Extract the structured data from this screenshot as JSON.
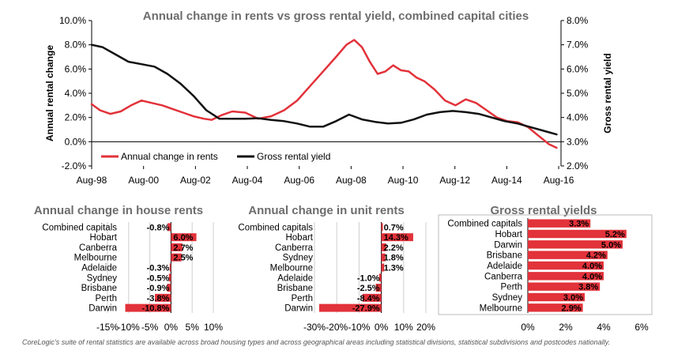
{
  "chart_data": [
    {
      "type": "line",
      "title": "Annual change in rents vs gross rental yield, combined capital cities",
      "xlabel": "",
      "ylabel": "Annual rental change",
      "y2label": "Gross rental yield",
      "x_range": [
        1998.58,
        2016.67
      ],
      "xticks": [
        1998.58,
        2000.58,
        2002.58,
        2004.58,
        2006.58,
        2008.58,
        2010.58,
        2012.58,
        2014.58,
        2016.58
      ],
      "xtick_labels": [
        "Aug-98",
        "Aug-00",
        "Aug-02",
        "Aug-04",
        "Aug-06",
        "Aug-08",
        "Aug-10",
        "Aug-12",
        "Aug-14",
        "Aug-16"
      ],
      "ylim": [
        -2,
        10
      ],
      "yticks": [
        -2,
        0,
        2,
        4,
        6,
        8,
        10
      ],
      "ytick_labels": [
        "-2.0%",
        "0.0%",
        "2.0%",
        "4.0%",
        "6.0%",
        "8.0%",
        "10.0%"
      ],
      "y2lim": [
        2,
        8
      ],
      "y2ticks": [
        2,
        3,
        4,
        5,
        6,
        7,
        8
      ],
      "y2tick_labels": [
        "2.0%",
        "3.0%",
        "4.0%",
        "5.0%",
        "6.0%",
        "7.0%",
        "8.0%"
      ],
      "legend": [
        "Annual change in rents",
        "Gross rental yield"
      ],
      "legend_position": "bottom-center",
      "series": [
        {
          "name": "Annual change in rents",
          "color": "#e2323a",
          "axis": "left",
          "x": [
            1998.58,
            1998.9,
            1999.3,
            1999.7,
            2000.1,
            2000.5,
            2000.9,
            2001.3,
            2001.7,
            2002.1,
            2002.5,
            2002.9,
            2003.2,
            2003.6,
            2004.0,
            2004.5,
            2005.0,
            2005.5,
            2006.0,
            2006.5,
            2007.0,
            2007.5,
            2008.0,
            2008.4,
            2008.7,
            2009.0,
            2009.3,
            2009.6,
            2009.9,
            2010.2,
            2010.5,
            2010.8,
            2011.1,
            2011.4,
            2011.8,
            2012.2,
            2012.6,
            2013.0,
            2013.4,
            2013.8,
            2014.2,
            2014.6,
            2015.0,
            2015.4,
            2015.8,
            2016.2,
            2016.5
          ],
          "y": [
            3.1,
            2.6,
            2.3,
            2.5,
            3.0,
            3.4,
            3.2,
            3.0,
            2.7,
            2.4,
            2.1,
            1.9,
            1.8,
            2.2,
            2.5,
            2.4,
            1.9,
            2.1,
            2.6,
            3.4,
            4.6,
            5.8,
            7.0,
            8.0,
            8.4,
            7.8,
            6.6,
            5.6,
            5.8,
            6.3,
            5.9,
            5.8,
            5.3,
            5.0,
            4.3,
            3.4,
            3.0,
            3.5,
            3.2,
            2.6,
            2.0,
            1.7,
            1.6,
            1.2,
            0.5,
            -0.2,
            -0.5
          ]
        },
        {
          "name": "Gross rental yield",
          "color": "#111111",
          "axis": "right",
          "x": [
            1998.58,
            1999.0,
            1999.5,
            2000.0,
            2000.5,
            2001.0,
            2001.5,
            2002.0,
            2002.5,
            2003.0,
            2003.5,
            2004.0,
            2004.5,
            2005.0,
            2005.5,
            2006.0,
            2006.5,
            2007.0,
            2007.5,
            2008.0,
            2008.5,
            2009.0,
            2009.5,
            2010.0,
            2010.5,
            2011.0,
            2011.5,
            2012.0,
            2012.5,
            2013.0,
            2013.5,
            2014.0,
            2014.5,
            2015.0,
            2015.5,
            2016.0,
            2016.5
          ],
          "y": [
            7.0,
            6.9,
            6.6,
            6.3,
            6.2,
            6.1,
            5.8,
            5.4,
            4.9,
            4.3,
            3.95,
            3.95,
            3.95,
            3.97,
            3.9,
            3.85,
            3.75,
            3.62,
            3.62,
            3.85,
            4.12,
            3.92,
            3.82,
            3.75,
            3.78,
            3.92,
            4.12,
            4.22,
            4.27,
            4.22,
            4.15,
            4.0,
            3.85,
            3.75,
            3.6,
            3.45,
            3.3
          ]
        }
      ]
    },
    {
      "type": "bar",
      "orientation": "horizontal",
      "title": "Annual change in house rents",
      "categories": [
        "Combined capitals",
        "Hobart",
        "Canberra",
        "Melbourne",
        "Adelaide",
        "Sydney",
        "Brisbane",
        "Perth",
        "Darwin"
      ],
      "values": [
        -0.8,
        6.0,
        2.7,
        2.5,
        -0.3,
        -0.5,
        -0.9,
        -3.8,
        -10.8
      ],
      "value_labels": [
        "-0.8%",
        "6.0%",
        "2.7%",
        "2.5%",
        "-0.3%",
        "-0.5%",
        "-0.9%",
        "-3.8%",
        "-10.8%"
      ],
      "xlim": [
        -15,
        10
      ],
      "xticks": [
        -15,
        -10,
        -5,
        0,
        5,
        10
      ],
      "xtick_labels": [
        "-15%",
        "-10%",
        "-5%",
        "0%",
        "5%",
        "10%"
      ],
      "color": "#e2323a"
    },
    {
      "type": "bar",
      "orientation": "horizontal",
      "title": "Annual change in unit rents",
      "categories": [
        "Combined capitals",
        "Hobart",
        "Canberra",
        "Sydney",
        "Melbourne",
        "Adelaide",
        "Brisbane",
        "Perth",
        "Darwin"
      ],
      "values": [
        0.7,
        14.3,
        2.2,
        1.8,
        1.3,
        -1.0,
        -2.5,
        -8.4,
        -27.9
      ],
      "value_labels": [
        "0.7%",
        "14.3%",
        "2.2%",
        "1.8%",
        "1.3%",
        "-1.0%",
        "-2.5%",
        "-8.4%",
        "-27.9%"
      ],
      "xlim": [
        -30,
        20
      ],
      "xticks": [
        -30,
        -20,
        -10,
        0,
        10,
        20
      ],
      "xtick_labels": [
        "-30%",
        "-20%",
        "-10%",
        "0%",
        "10%",
        "20%"
      ],
      "color": "#e2323a"
    },
    {
      "type": "bar",
      "orientation": "horizontal",
      "title": "Gross rental yields",
      "categories": [
        "Combined capitals",
        "Hobart",
        "Darwin",
        "Brisbane",
        "Adelaide",
        "Canberra",
        "Perth",
        "Sydney",
        "Melbourne"
      ],
      "values": [
        3.3,
        5.2,
        5.0,
        4.2,
        4.0,
        4.0,
        3.8,
        3.0,
        2.9
      ],
      "value_labels": [
        "3.3%",
        "5.2%",
        "5.0%",
        "4.2%",
        "4.0%",
        "4.0%",
        "3.8%",
        "3.0%",
        "2.9%"
      ],
      "xlim": [
        0,
        6
      ],
      "xticks": [
        0,
        2,
        4,
        6
      ],
      "xtick_labels": [
        "0%",
        "2%",
        "4%",
        "6%"
      ],
      "color": "#e2323a"
    }
  ],
  "footnote": "CoreLogic's suite of rental statistics are available across broad housing types and across geographical areas including statistical divisions, statistical subdivisions and postcodes nationally."
}
